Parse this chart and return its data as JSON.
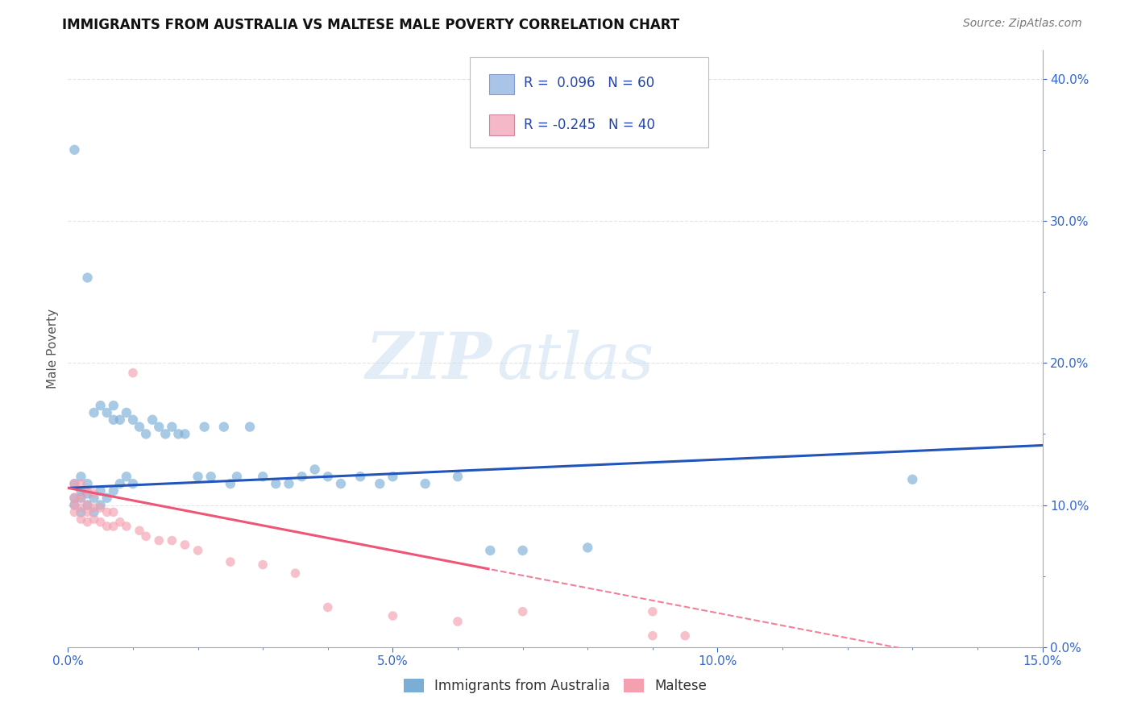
{
  "title": "IMMIGRANTS FROM AUSTRALIA VS MALTESE MALE POVERTY CORRELATION CHART",
  "source": "Source: ZipAtlas.com",
  "ylabel_label": "Male Poverty",
  "xlim": [
    0.0,
    0.15
  ],
  "ylim": [
    0.0,
    0.42
  ],
  "background_color": "#ffffff",
  "watermark_zip": "ZIP",
  "watermark_atlas": "atlas",
  "blue_color": "#7aaed6",
  "pink_color": "#f4a0b0",
  "blue_line_color": "#2255bb",
  "pink_line_color": "#ee5577",
  "r1": 0.096,
  "n1": 60,
  "r2": -0.245,
  "n2": 40,
  "blue_scatter_x": [
    0.001,
    0.001,
    0.001,
    0.002,
    0.002,
    0.002,
    0.002,
    0.003,
    0.003,
    0.003,
    0.003,
    0.004,
    0.004,
    0.004,
    0.005,
    0.005,
    0.005,
    0.006,
    0.006,
    0.007,
    0.007,
    0.007,
    0.008,
    0.008,
    0.009,
    0.009,
    0.01,
    0.01,
    0.011,
    0.012,
    0.013,
    0.014,
    0.015,
    0.016,
    0.017,
    0.018,
    0.02,
    0.021,
    0.022,
    0.024,
    0.025,
    0.026,
    0.028,
    0.03,
    0.032,
    0.034,
    0.036,
    0.038,
    0.04,
    0.042,
    0.045,
    0.048,
    0.05,
    0.055,
    0.06,
    0.065,
    0.07,
    0.08,
    0.13,
    0.001
  ],
  "blue_scatter_y": [
    0.1,
    0.105,
    0.115,
    0.095,
    0.105,
    0.11,
    0.12,
    0.1,
    0.108,
    0.115,
    0.26,
    0.095,
    0.105,
    0.165,
    0.1,
    0.11,
    0.17,
    0.105,
    0.165,
    0.11,
    0.16,
    0.17,
    0.115,
    0.16,
    0.12,
    0.165,
    0.115,
    0.16,
    0.155,
    0.15,
    0.16,
    0.155,
    0.15,
    0.155,
    0.15,
    0.15,
    0.12,
    0.155,
    0.12,
    0.155,
    0.115,
    0.12,
    0.155,
    0.12,
    0.115,
    0.115,
    0.12,
    0.125,
    0.12,
    0.115,
    0.12,
    0.115,
    0.12,
    0.115,
    0.12,
    0.068,
    0.068,
    0.07,
    0.118,
    0.35
  ],
  "pink_scatter_x": [
    0.001,
    0.001,
    0.001,
    0.001,
    0.002,
    0.002,
    0.002,
    0.002,
    0.003,
    0.003,
    0.003,
    0.003,
    0.004,
    0.004,
    0.004,
    0.005,
    0.005,
    0.006,
    0.006,
    0.007,
    0.007,
    0.008,
    0.009,
    0.01,
    0.011,
    0.012,
    0.014,
    0.016,
    0.018,
    0.02,
    0.025,
    0.03,
    0.035,
    0.04,
    0.05,
    0.06,
    0.07,
    0.09,
    0.09,
    0.095
  ],
  "pink_scatter_y": [
    0.095,
    0.1,
    0.105,
    0.115,
    0.09,
    0.098,
    0.105,
    0.115,
    0.088,
    0.095,
    0.1,
    0.11,
    0.09,
    0.098,
    0.108,
    0.088,
    0.098,
    0.085,
    0.095,
    0.085,
    0.095,
    0.088,
    0.085,
    0.193,
    0.082,
    0.078,
    0.075,
    0.075,
    0.072,
    0.068,
    0.06,
    0.058,
    0.052,
    0.028,
    0.022,
    0.018,
    0.025,
    0.025,
    0.008,
    0.008
  ],
  "blue_marker_size": 80,
  "pink_marker_size": 70,
  "grid_color": "#dddddd",
  "grid_alpha": 0.8,
  "legend_box_color_blue": "#aac4e8",
  "legend_box_color_pink": "#f4b8c8",
  "blue_line_intercept": 0.112,
  "blue_line_slope": 0.02,
  "pink_line_intercept": 0.112,
  "pink_line_slope": -0.9
}
